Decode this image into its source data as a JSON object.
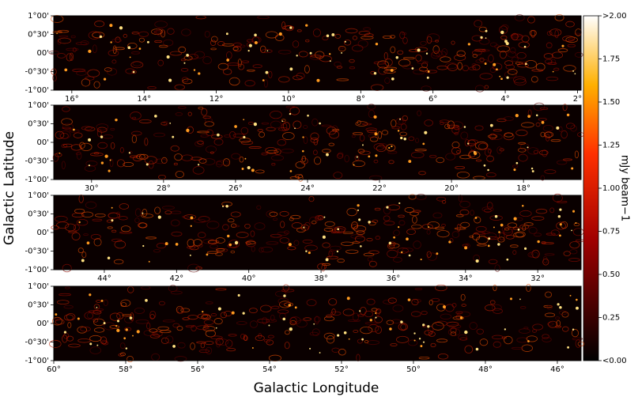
{
  "chart_data": [
    {
      "type": "image",
      "xlim": [
        16.5,
        1.9
      ],
      "ylim": [
        -1,
        1
      ],
      "xticks": [
        {
          "value": 16,
          "label": "16°"
        },
        {
          "value": 14,
          "label": "14°"
        },
        {
          "value": 12,
          "label": "12°"
        },
        {
          "value": 10,
          "label": "10°"
        },
        {
          "value": 8,
          "label": "8°"
        },
        {
          "value": 6,
          "label": "6°"
        },
        {
          "value": 4,
          "label": "4°"
        },
        {
          "value": 2,
          "label": "2°"
        }
      ],
      "yticks": [
        {
          "value": 1,
          "label": "1°00'"
        },
        {
          "value": 0.5,
          "label": "0°30'"
        },
        {
          "value": 0,
          "label": "00'"
        },
        {
          "value": -0.5,
          "label": "-0°30'"
        },
        {
          "value": -1,
          "label": "-1°00'"
        }
      ]
    },
    {
      "type": "image",
      "xlim": [
        31.05,
        16.4
      ],
      "ylim": [
        -1,
        1
      ],
      "xticks": [
        {
          "value": 30,
          "label": "30°"
        },
        {
          "value": 28,
          "label": "28°"
        },
        {
          "value": 26,
          "label": "26°"
        },
        {
          "value": 24,
          "label": "24°"
        },
        {
          "value": 22,
          "label": "22°"
        },
        {
          "value": 20,
          "label": "20°"
        },
        {
          "value": 18,
          "label": "18°"
        }
      ],
      "yticks": [
        {
          "value": 1,
          "label": "1°00'"
        },
        {
          "value": 0.5,
          "label": "0°30'"
        },
        {
          "value": 0,
          "label": "00'"
        },
        {
          "value": -0.5,
          "label": "-0°30'"
        },
        {
          "value": -1,
          "label": "-1°00'"
        }
      ]
    },
    {
      "type": "image",
      "xlim": [
        45.4,
        30.8
      ],
      "ylim": [
        -1,
        1
      ],
      "xticks": [
        {
          "value": 44,
          "label": "44°"
        },
        {
          "value": 42,
          "label": "42°"
        },
        {
          "value": 40,
          "label": "40°"
        },
        {
          "value": 38,
          "label": "38°"
        },
        {
          "value": 36,
          "label": "36°"
        },
        {
          "value": 34,
          "label": "34°"
        },
        {
          "value": 32,
          "label": "32°"
        }
      ],
      "yticks": [
        {
          "value": 1,
          "label": "1°00'"
        },
        {
          "value": 0.5,
          "label": "0°30'"
        },
        {
          "value": 0,
          "label": "00'"
        },
        {
          "value": -0.5,
          "label": "-0°30'"
        },
        {
          "value": -1,
          "label": "-1°00'"
        }
      ]
    },
    {
      "type": "image",
      "xlim": [
        60,
        45.34
      ],
      "ylim": [
        -1,
        1
      ],
      "xticks": [
        {
          "value": 60,
          "label": "60°"
        },
        {
          "value": 58,
          "label": "58°"
        },
        {
          "value": 56,
          "label": "56°"
        },
        {
          "value": 54,
          "label": "54°"
        },
        {
          "value": 52,
          "label": "52°"
        },
        {
          "value": 50,
          "label": "50°"
        },
        {
          "value": 48,
          "label": "48°"
        },
        {
          "value": 46,
          "label": "46°"
        }
      ],
      "yticks": [
        {
          "value": 1,
          "label": "1°00'"
        },
        {
          "value": 0.5,
          "label": "0°30'"
        },
        {
          "value": 0,
          "label": "00'"
        },
        {
          "value": -0.5,
          "label": "-0°30'"
        },
        {
          "value": -1,
          "label": "-1°00'"
        }
      ]
    }
  ],
  "xlabel": "Galactic Longitude",
  "ylabel": "Galactic Latitude",
  "colorbar": {
    "label": "mJy beam−1",
    "lim": [
      0,
      2
    ],
    "ticks": [
      {
        "value": 0,
        "label": "<0.00"
      },
      {
        "value": 0.25,
        "label": "0.25"
      },
      {
        "value": 0.5,
        "label": "0.50"
      },
      {
        "value": 0.75,
        "label": "0.75"
      },
      {
        "value": 1,
        "label": "1.00"
      },
      {
        "value": 1.25,
        "label": "1.25"
      },
      {
        "value": 1.5,
        "label": "1.50"
      },
      {
        "value": 1.75,
        "label": "1.75"
      },
      {
        "value": 2,
        "label": ">2.00"
      }
    ]
  }
}
